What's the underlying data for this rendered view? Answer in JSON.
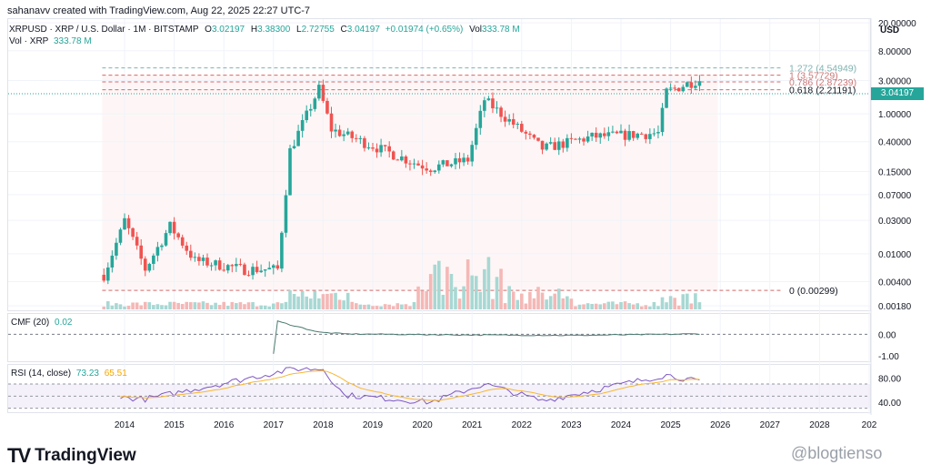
{
  "caption": "sahanavv created with TradingView.com, Aug 22, 2025 22:27 UTC-7",
  "symbol_line": {
    "symbol": "XRPUSD · XRP / U.S. Dollar · 1M · BITSTAMP",
    "o_label": "O",
    "o": "3.02197",
    "h_label": "H",
    "h": "3.38300",
    "l_label": "L",
    "l": "2.72755",
    "c_label": "C",
    "c": "3.04197",
    "change": "+0.01974 (+0.65%)",
    "vol_label": "Vol",
    "vol": "333.78 M"
  },
  "vol_line": {
    "label": "Vol · XRP",
    "value": "333.78 M"
  },
  "currency": "USD",
  "last_price": "3.04197",
  "cmf_legend": {
    "label": "CMF (20)",
    "value": "0.02"
  },
  "rsi_legend": {
    "label": "RSI (14, close)",
    "value": "73.23",
    "ma": "65.51"
  },
  "brand": {
    "mark": "TV",
    "name": "TradingView"
  },
  "watermark": "@blogtienso",
  "colors": {
    "up": "#26a69a",
    "down": "#ef5350",
    "fib": "#d46a6a",
    "fib_top": "#7fb3b0",
    "cmf": "#4a7a6e",
    "rsi": "#7e57c2",
    "rsi_ma": "#f7b733"
  },
  "chart_data": [
    {
      "type": "candlestick",
      "scale": "log",
      "x_ticks": [
        "2014",
        "2015",
        "2016",
        "2017",
        "2018",
        "2019",
        "2020",
        "2021",
        "2022",
        "2023",
        "2024",
        "2025",
        "2026",
        "2027",
        "2028",
        "202"
      ],
      "y_ticks": [
        "20.00000",
        "8.00000",
        "3.00000",
        "1.00000",
        "0.40000",
        "0.15000",
        "0.07000",
        "0.03000",
        "0.01000",
        "0.00400",
        "0.00180"
      ],
      "ylim": [
        0.0016,
        22
      ],
      "fib_levels": [
        {
          "label": "1.272 (4.54949)",
          "value": 4.54949
        },
        {
          "label": "1 (3.57729)",
          "value": 3.57729
        },
        {
          "label": "0.786 (2.87239)",
          "value": 2.87239
        },
        {
          "label": "0.618 (2.21191)",
          "value": 2.21191
        },
        {
          "label": "0 (0.00299)",
          "value": 0.00299
        }
      ],
      "anchors": [
        {
          "date": "2013-08",
          "close": 0.005
        },
        {
          "date": "2013-12",
          "close": 0.02
        },
        {
          "date": "2014-01",
          "close": 0.03
        },
        {
          "date": "2014-06",
          "close": 0.006
        },
        {
          "date": "2014-12",
          "close": 0.025
        },
        {
          "date": "2015-06",
          "close": 0.008
        },
        {
          "date": "2016-06",
          "close": 0.006
        },
        {
          "date": "2017-02",
          "close": 0.006
        },
        {
          "date": "2017-05",
          "close": 0.3
        },
        {
          "date": "2017-12",
          "close": 2.3
        },
        {
          "date": "2018-03",
          "close": 0.6
        },
        {
          "date": "2019-01",
          "close": 0.35
        },
        {
          "date": "2019-12",
          "close": 0.19
        },
        {
          "date": "2020-03",
          "close": 0.17
        },
        {
          "date": "2020-12",
          "close": 0.22
        },
        {
          "date": "2021-04",
          "close": 1.6
        },
        {
          "date": "2022-06",
          "close": 0.32
        },
        {
          "date": "2023-06",
          "close": 0.47
        },
        {
          "date": "2024-10",
          "close": 0.53
        },
        {
          "date": "2024-12",
          "close": 2.08
        },
        {
          "date": "2025-07",
          "close": 3.0
        },
        {
          "date": "2025-08",
          "close": 3.04
        }
      ]
    },
    {
      "type": "line",
      "name": "CMF (20)",
      "y_ticks": [
        "0.00",
        "-1.00"
      ],
      "anchors": [
        {
          "date": "2017-01",
          "value": -0.9
        },
        {
          "date": "2017-02",
          "value": 0.6
        },
        {
          "date": "2017-12",
          "value": 0.1
        },
        {
          "date": "2018-06",
          "value": 0.02
        },
        {
          "date": "2020-06",
          "value": -0.02
        },
        {
          "date": "2023-01",
          "value": -0.05
        },
        {
          "date": "2025-08",
          "value": 0.02
        }
      ]
    },
    {
      "type": "line",
      "name": "RSI (14, close)",
      "y_ticks": [
        "80.00",
        "40.00"
      ],
      "ylim": [
        25,
        100
      ],
      "anchors": [
        {
          "date": "2013-12",
          "value": 48
        },
        {
          "date": "2014-06",
          "value": 45
        },
        {
          "date": "2017-06",
          "value": 95
        },
        {
          "date": "2018-01",
          "value": 95
        },
        {
          "date": "2018-06",
          "value": 52
        },
        {
          "date": "2020-03",
          "value": 40
        },
        {
          "date": "2021-04",
          "value": 70
        },
        {
          "date": "2022-06",
          "value": 42
        },
        {
          "date": "2024-12",
          "value": 85
        },
        {
          "date": "2025-08",
          "value": 73.23
        }
      ]
    }
  ]
}
